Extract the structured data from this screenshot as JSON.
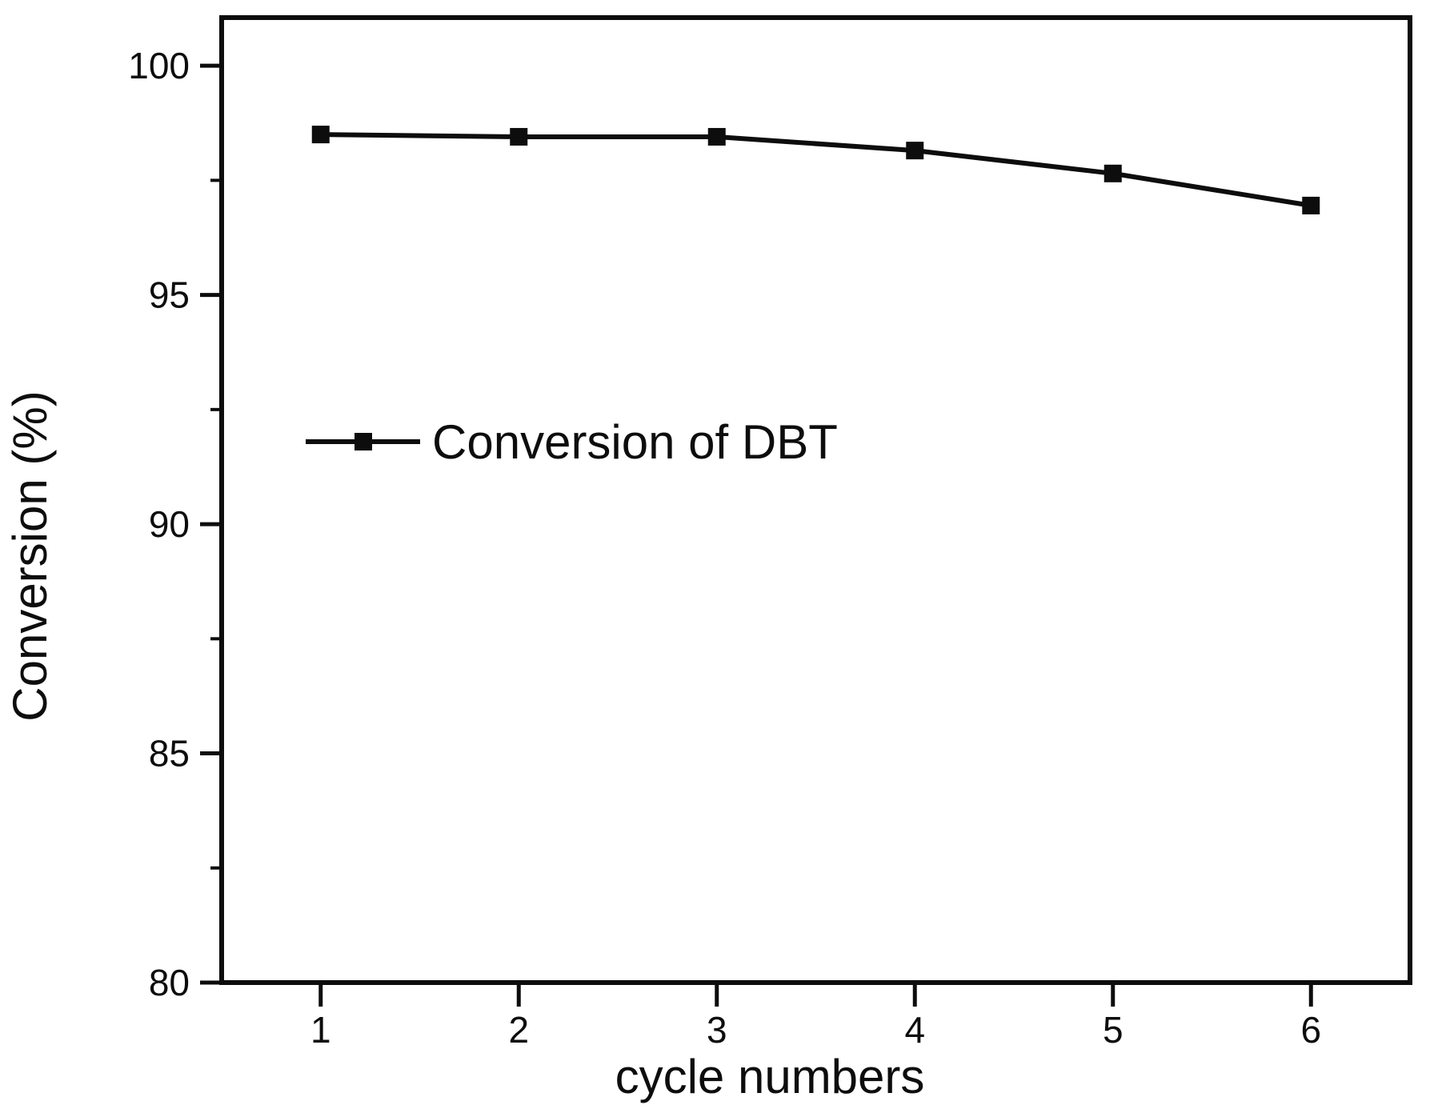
{
  "figure": {
    "background_color": "#ffffff",
    "foreground_color": "#0d0d0d"
  },
  "chart_data": {
    "type": "line",
    "title": "",
    "xlabel": "cycle numbers",
    "ylabel": "Conversion (%)",
    "legend": [
      {
        "label": "Conversion of DBT",
        "marker": "filled-square",
        "color": "#0d0d0d"
      }
    ],
    "legend_position": "inside-middle-left",
    "x": [
      1,
      2,
      3,
      4,
      5,
      6
    ],
    "series": [
      {
        "name": "Conversion of DBT",
        "values": [
          98.5,
          98.45,
          98.45,
          98.15,
          97.65,
          96.95
        ]
      }
    ],
    "xlim": [
      0.5,
      6.5
    ],
    "ylim": [
      80,
      100
    ],
    "x_ticks": [
      1,
      2,
      3,
      4,
      5,
      6
    ],
    "x_tick_labels": [
      "1",
      "2",
      "3",
      "4",
      "5",
      "6"
    ],
    "y_ticks": [
      80,
      85,
      90,
      95,
      100
    ],
    "y_tick_labels": [
      "80",
      "85",
      "90",
      "95",
      "100"
    ],
    "y_minor_ticks": [
      82.5,
      87.5,
      92.5,
      97.5
    ],
    "grid": "off",
    "frame": "box"
  }
}
